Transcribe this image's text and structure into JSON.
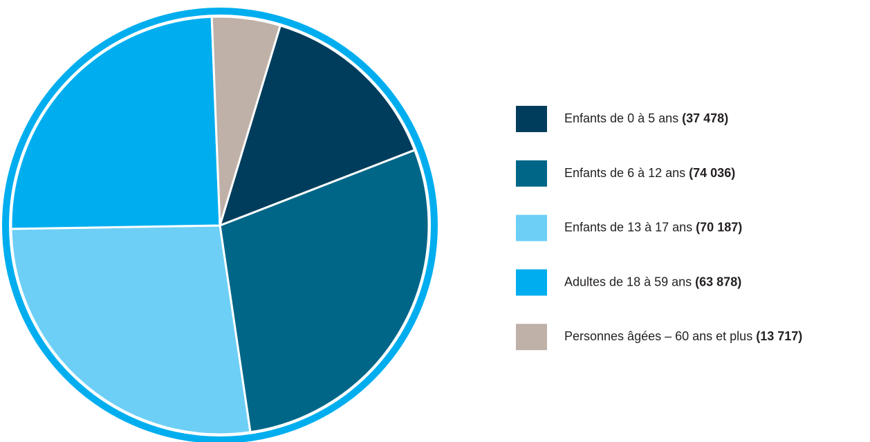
{
  "chart_data": {
    "type": "pie",
    "series": [
      {
        "name": "Enfants de 0 à 5 ans",
        "color": "#003d5c",
        "values": [
          37478
        ],
        "value_labels": [
          "(37 478)"
        ]
      },
      {
        "name": "Enfants de 6 à 12 ans",
        "color": "#006687",
        "values": [
          74036
        ],
        "value_labels": [
          "(74 036)"
        ]
      },
      {
        "name": "Enfants de 13 à 17 ans",
        "color": "#6dcff6",
        "values": [
          70187
        ],
        "value_labels": [
          "(70 187)"
        ]
      },
      {
        "name": "Adultes de 18 à 59 ans",
        "color": "#00aeef",
        "values": [
          63878
        ],
        "value_labels": [
          "(63 878)"
        ]
      },
      {
        "name": "Personnes âgées – 60 ans et plus",
        "color": "#bfb1a8",
        "values": [
          13717
        ],
        "value_labels": [
          "(13 717)"
        ]
      }
    ]
  }
}
